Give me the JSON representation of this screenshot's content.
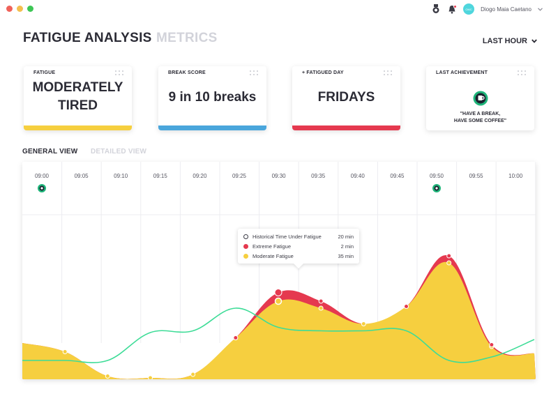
{
  "window": {
    "controls": [
      "close",
      "minimize",
      "maximize"
    ]
  },
  "topbar": {
    "icons": [
      "medal-icon",
      "bell-icon"
    ],
    "avatar_initials": "OMC",
    "username": "Diogo Maia Caetano"
  },
  "header": {
    "title": "FATIGUE ANALYSIS",
    "secondary_tab": "METRICS",
    "period": "LAST HOUR"
  },
  "cards": [
    {
      "label": "FATIGUE",
      "value_line1": "MODERATELY",
      "value_line2": "TIRED",
      "bar_color": "#f6cf3f"
    },
    {
      "label": "BREAK SCORE",
      "value": "9 in 10 breaks",
      "bar_color": "#4aa6dc"
    },
    {
      "label": "+ FATIGUED DAY",
      "value": "FRIDAYS",
      "bar_color": "#e5394f"
    },
    {
      "label": "LAST ACHIEVEMENT",
      "line1": "\"HAVE A BREAK,",
      "line2": "HAVE SOME COFFEE\"",
      "icon": "coffee-badge-icon"
    }
  ],
  "views": {
    "general": "GENERAL VIEW",
    "detailed": "DETAILED VIEW"
  },
  "tooltip": {
    "rows": [
      {
        "label": "Historical Time Under Fatigue",
        "value": "20 min",
        "color": "#ffffff"
      },
      {
        "label": "Extreme Fatigue",
        "value": "2 min",
        "color": "#e5394f"
      },
      {
        "label": "Moderate Fatigue",
        "value": "35 min",
        "color": "#f6cf3f"
      }
    ]
  },
  "chart_data": {
    "type": "area",
    "title": "",
    "categories": [
      "09:00",
      "09:05",
      "09:10",
      "09:15",
      "09:20",
      "09:25",
      "09:30",
      "09:35",
      "09:40",
      "09:45",
      "09:50",
      "09:55",
      "10:00"
    ],
    "achievement_markers_at": [
      "09:00",
      "09:50"
    ],
    "ylim": [
      0,
      100
    ],
    "series": [
      {
        "name": "Moderate Fatigue",
        "color": "#f6cf3f",
        "x": [
          0,
          5,
          10,
          15,
          20,
          25,
          30,
          35,
          40,
          45,
          50,
          55,
          60
        ],
        "values": [
          18,
          13,
          -1,
          -2,
          0,
          21,
          42,
          38,
          29,
          39,
          64,
          16,
          12
        ]
      },
      {
        "name": "Extreme Fatigue",
        "color": "#e5394f",
        "x": [
          0,
          5,
          10,
          15,
          20,
          25,
          30,
          35,
          40,
          45,
          50,
          55,
          60
        ],
        "values": [
          18,
          13,
          -1,
          -2,
          0,
          21,
          47,
          42,
          29,
          39,
          68,
          17,
          12
        ]
      },
      {
        "name": "Historical Time Under Fatigue",
        "color": "#3ddc97",
        "x": [
          0,
          5,
          10,
          15,
          20,
          25,
          30,
          35,
          40,
          45,
          50,
          55,
          60
        ],
        "values": [
          8,
          8,
          8,
          24,
          25,
          38,
          27,
          25,
          25,
          25,
          8,
          10,
          20
        ]
      }
    ]
  }
}
